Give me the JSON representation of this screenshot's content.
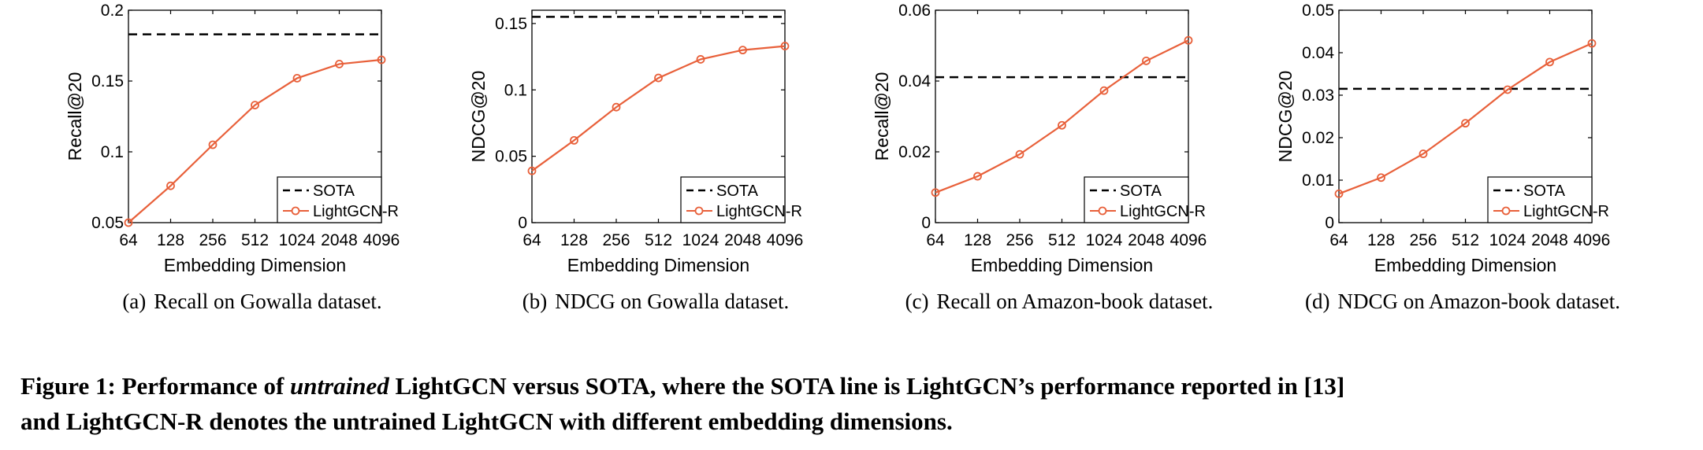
{
  "chart_data": [
    {
      "type": "line",
      "x_categories": [
        "64",
        "128",
        "256",
        "512",
        "1024",
        "2048",
        "4096"
      ],
      "xlabel": "Embedding Dimension",
      "ylabel": "Recall@20",
      "ylim": [
        0.05,
        0.2
      ],
      "yticks": [
        0.05,
        0.1,
        0.15,
        0.2
      ],
      "ytick_labels": [
        "0.05",
        "0.1",
        "0.15",
        "0.2"
      ],
      "legend_position": "bottom-right",
      "series": [
        {
          "name": "SOTA",
          "style": "dashed",
          "color": "#000000",
          "values": [
            0.183,
            0.183,
            0.183,
            0.183,
            0.183,
            0.183,
            0.183
          ]
        },
        {
          "name": "LightGCN-R",
          "style": "line-circle",
          "color": "#e8603a",
          "values": [
            0.05,
            0.076,
            0.105,
            0.133,
            0.152,
            0.162,
            0.165
          ]
        }
      ],
      "caption_label": "(a)",
      "caption_text": "Recall on Gowalla dataset."
    },
    {
      "type": "line",
      "x_categories": [
        "64",
        "128",
        "256",
        "512",
        "1024",
        "2048",
        "4096"
      ],
      "xlabel": "Embedding Dimension",
      "ylabel": "NDCG@20",
      "ylim": [
        0,
        0.16
      ],
      "yticks": [
        0,
        0.05,
        0.1,
        0.15
      ],
      "ytick_labels": [
        "0",
        "0.05",
        "0.1",
        "0.15"
      ],
      "legend_position": "bottom-right",
      "series": [
        {
          "name": "SOTA",
          "style": "dashed",
          "color": "#000000",
          "values": [
            0.155,
            0.155,
            0.155,
            0.155,
            0.155,
            0.155,
            0.155
          ]
        },
        {
          "name": "LightGCN-R",
          "style": "line-circle",
          "color": "#e8603a",
          "values": [
            0.039,
            0.062,
            0.087,
            0.109,
            0.123,
            0.13,
            0.133
          ]
        }
      ],
      "caption_label": "(b)",
      "caption_text": "NDCG on Gowalla dataset."
    },
    {
      "type": "line",
      "x_categories": [
        "64",
        "128",
        "256",
        "512",
        "1024",
        "2048",
        "4096"
      ],
      "xlabel": "Embedding Dimension",
      "ylabel": "Recall@20",
      "ylim": [
        0,
        0.06
      ],
      "yticks": [
        0,
        0.02,
        0.04,
        0.06
      ],
      "ytick_labels": [
        "0",
        "0.02",
        "0.04",
        "0.06"
      ],
      "legend_position": "bottom-right",
      "series": [
        {
          "name": "SOTA",
          "style": "dashed",
          "color": "#000000",
          "values": [
            0.0411,
            0.0411,
            0.0411,
            0.0411,
            0.0411,
            0.0411,
            0.0411
          ]
        },
        {
          "name": "LightGCN-R",
          "style": "line-circle",
          "color": "#e8603a",
          "values": [
            0.0085,
            0.0131,
            0.0193,
            0.0275,
            0.0373,
            0.0457,
            0.0515
          ]
        }
      ],
      "caption_label": "(c)",
      "caption_text": "Recall on Amazon-book dataset."
    },
    {
      "type": "line",
      "x_categories": [
        "64",
        "128",
        "256",
        "512",
        "1024",
        "2048",
        "4096"
      ],
      "xlabel": "Embedding Dimension",
      "ylabel": "NDCG@20",
      "ylim": [
        0,
        0.05
      ],
      "yticks": [
        0,
        0.01,
        0.02,
        0.03,
        0.04,
        0.05
      ],
      "ytick_labels": [
        "0",
        "0.01",
        "0.02",
        "0.03",
        "0.04",
        "0.05"
      ],
      "legend_position": "bottom-right",
      "series": [
        {
          "name": "SOTA",
          "style": "dashed",
          "color": "#000000",
          "values": [
            0.0315,
            0.0315,
            0.0315,
            0.0315,
            0.0315,
            0.0315,
            0.0315
          ]
        },
        {
          "name": "LightGCN-R",
          "style": "line-circle",
          "color": "#e8603a",
          "values": [
            0.0068,
            0.0106,
            0.0162,
            0.0234,
            0.0313,
            0.0378,
            0.0422
          ]
        }
      ],
      "caption_label": "(d)",
      "caption_text": "NDCG on Amazon-book dataset."
    }
  ],
  "figure_caption": {
    "line1_a": "Figure 1: Performance of ",
    "line1_em": "untrained",
    "line1_b": " LightGCN versus SOTA, where the SOTA line is LightGCN’s performance reported in [13]",
    "line2": "and LightGCN-R denotes the untrained LightGCN with different embedding dimensions."
  }
}
